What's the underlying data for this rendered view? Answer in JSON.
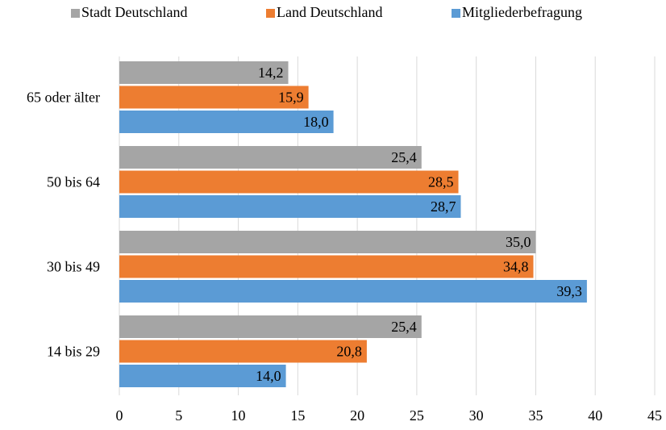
{
  "chart_data": {
    "type": "hbar",
    "categories": [
      "65 oder älter",
      "50 bis 64",
      "30 bis 49",
      "14 bis 29"
    ],
    "series": [
      {
        "name": "Stadt Deutschland",
        "color": "#a5a5a5",
        "values": [
          14.2,
          25.4,
          35.0,
          25.4
        ],
        "value_labels": [
          "14,2",
          "25,4",
          "35,0",
          "25,4"
        ]
      },
      {
        "name": "Land Deutschland",
        "color": "#ed7d31",
        "values": [
          15.9,
          28.5,
          34.8,
          20.8
        ],
        "value_labels": [
          "15,9",
          "28,5",
          "34,8",
          "20,8"
        ]
      },
      {
        "name": "Mitgliederbefragung",
        "color": "#5b9bd5",
        "values": [
          18.0,
          28.7,
          39.3,
          14.0
        ],
        "value_labels": [
          "18,0",
          "28,7",
          "39,3",
          "14,0"
        ]
      }
    ],
    "xlim": [
      0,
      45
    ],
    "xticks": [
      0,
      5,
      10,
      15,
      20,
      25,
      30,
      35,
      40,
      45
    ],
    "grid": true,
    "legend": "top"
  }
}
